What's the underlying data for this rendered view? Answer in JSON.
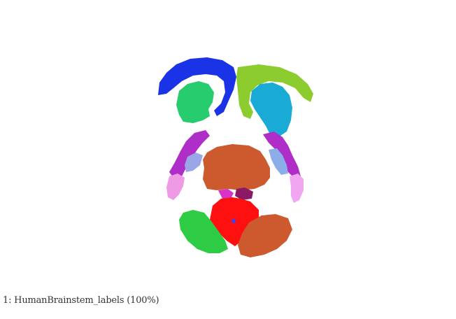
{
  "viewer": {
    "layer_caption": "1: HumanBrainstem_labels  (100%)"
  },
  "label_map": {
    "regions": [
      {
        "name": "left-upper-arc",
        "color": "#1a33e6"
      },
      {
        "name": "right-upper-arc",
        "color": "#8ccc2e"
      },
      {
        "name": "left-upper-lobe",
        "color": "#26cc6e"
      },
      {
        "name": "right-upper-lobe",
        "color": "#1aaad6"
      },
      {
        "name": "left-side-band",
        "color": "#b02ec8"
      },
      {
        "name": "right-side-band",
        "color": "#b02ec8"
      },
      {
        "name": "left-side-inner",
        "color": "#9aa6e6"
      },
      {
        "name": "right-side-inner",
        "color": "#8caee8"
      },
      {
        "name": "left-side-tip",
        "color": "#f09ae6"
      },
      {
        "name": "right-side-tip",
        "color": "#f0a6f0"
      },
      {
        "name": "central-body",
        "color": "#cc5a2e"
      },
      {
        "name": "central-small-left",
        "color": "#d633c8"
      },
      {
        "name": "central-small-right",
        "color": "#8a1a66"
      },
      {
        "name": "central-heart",
        "color": "#ff1010"
      },
      {
        "name": "central-dot",
        "color": "#3344ff"
      },
      {
        "name": "lower-left-lobe",
        "color": "#2ecc44"
      },
      {
        "name": "lower-right-lobe",
        "color": "#cc5a2e"
      }
    ]
  }
}
